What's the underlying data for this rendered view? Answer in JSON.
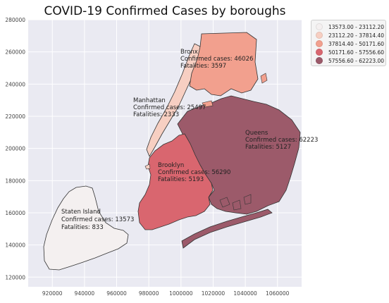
{
  "title": "COVID-19 Confirmed Cases by boroughs",
  "axes": {
    "x_ticks": [
      "920000",
      "940000",
      "960000",
      "980000",
      "1000000",
      "1020000",
      "1040000",
      "1060000"
    ],
    "y_ticks": [
      "280000",
      "260000",
      "240000",
      "220000",
      "200000",
      "180000",
      "160000",
      "140000",
      "120000"
    ],
    "xlim": [
      905000,
      1075000
    ],
    "ylim": [
      114000,
      280000
    ],
    "grid": true,
    "background": "#eaeaf2"
  },
  "legend": {
    "placement": "top-right",
    "items": [
      {
        "label": "13573.00 - 23112.20",
        "color": "#f4f0f0"
      },
      {
        "label": "23112.20 - 37814.40",
        "color": "#f7cfc2"
      },
      {
        "label": "37814.40 - 50171.60",
        "color": "#f2a08e"
      },
      {
        "label": "50171.60 - 57556.60",
        "color": "#d9666f"
      },
      {
        "label": "57556.60 - 62223.00",
        "color": "#9c5a6a"
      }
    ]
  },
  "boroughs": [
    {
      "name": "Bronx",
      "line1": "Confirmed cases: 46026",
      "line2": "Fatalities: 3597",
      "cases": 46026,
      "fatalities": 3597,
      "color": "#f2a08e"
    },
    {
      "name": "Manhattan",
      "line1": "Confirmed cases: 25497",
      "line2": "Fatalities: 2333",
      "cases": 25497,
      "fatalities": 2333,
      "color": "#f7cfc2"
    },
    {
      "name": "Queens",
      "line1": "Confirmed cases: 62223",
      "line2": "Fatalities: 5127",
      "cases": 62223,
      "fatalities": 5127,
      "color": "#9c5a6a"
    },
    {
      "name": "Brooklyn",
      "line1": "Confirmed cases: 56290",
      "line2": "Fatalities: 5193",
      "cases": 56290,
      "fatalities": 5193,
      "color": "#d9666f"
    },
    {
      "name": "Staten Island",
      "line1": "Confirmed cases: 13573",
      "line2": "Fatalities: 833",
      "cases": 13573,
      "fatalities": 833,
      "color": "#f4f0f0"
    }
  ]
}
